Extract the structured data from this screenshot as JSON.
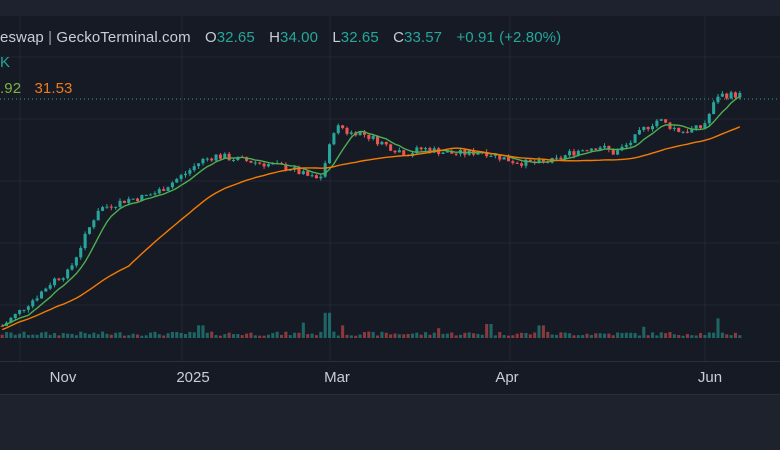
{
  "legend": {
    "source": "eswap",
    "separator": "|",
    "provider": "GeckoTerminal.com",
    "open_key": "O",
    "open": "32.65",
    "high_key": "H",
    "high": "34.00",
    "low_key": "L",
    "low": "32.65",
    "close_key": "C",
    "close": "33.57",
    "change": "+0.91 (+2.80%)",
    "volume_fragment": "K",
    "ma_fast": ".92",
    "ma_slow": "31.53"
  },
  "colors": {
    "up": "#26a69a",
    "down": "#ef5350",
    "ma_fast": "#4caf50",
    "ma_slow": "#f57c00",
    "background": "#161a25"
  },
  "chart_data": {
    "type": "candlestick",
    "x_tick_labels": [
      "Nov",
      "2025",
      "Mar",
      "Apr",
      "Jun"
    ],
    "last_close": 33.57,
    "ohlc_shape_y": [
      31,
      28,
      30,
      27,
      29,
      26,
      28,
      24,
      26,
      23,
      25,
      22,
      24,
      21,
      23,
      20,
      22,
      18,
      20,
      17,
      19,
      16,
      18,
      15,
      17,
      14,
      16,
      13,
      15,
      12,
      14,
      11,
      13,
      10,
      12,
      9,
      11,
      8,
      10,
      7,
      9,
      6,
      8,
      5,
      7,
      5,
      6,
      4,
      5,
      3,
      4,
      3,
      3,
      2,
      2,
      1,
      1,
      0,
      -1
    ],
    "price_path": [
      [
        0.0,
        0.05
      ],
      [
        0.02,
        0.1
      ],
      [
        0.05,
        0.18
      ],
      [
        0.07,
        0.24
      ],
      [
        0.09,
        0.27
      ],
      [
        0.11,
        0.4
      ],
      [
        0.13,
        0.53
      ],
      [
        0.15,
        0.55
      ],
      [
        0.17,
        0.57
      ],
      [
        0.19,
        0.58
      ],
      [
        0.21,
        0.6
      ],
      [
        0.23,
        0.64
      ],
      [
        0.25,
        0.68
      ],
      [
        0.27,
        0.73
      ],
      [
        0.29,
        0.75
      ],
      [
        0.31,
        0.74
      ],
      [
        0.33,
        0.73
      ],
      [
        0.35,
        0.72
      ],
      [
        0.37,
        0.71
      ],
      [
        0.39,
        0.7
      ],
      [
        0.41,
        0.67
      ],
      [
        0.43,
        0.65
      ],
      [
        0.44,
        0.74
      ],
      [
        0.45,
        0.86
      ],
      [
        0.46,
        0.87
      ],
      [
        0.47,
        0.84
      ],
      [
        0.48,
        0.85
      ],
      [
        0.49,
        0.84
      ],
      [
        0.51,
        0.81
      ],
      [
        0.53,
        0.78
      ],
      [
        0.55,
        0.76
      ],
      [
        0.57,
        0.78
      ],
      [
        0.59,
        0.77
      ],
      [
        0.61,
        0.76
      ],
      [
        0.63,
        0.76
      ],
      [
        0.65,
        0.77
      ],
      [
        0.67,
        0.75
      ],
      [
        0.69,
        0.73
      ],
      [
        0.71,
        0.72
      ],
      [
        0.73,
        0.72
      ],
      [
        0.75,
        0.73
      ],
      [
        0.77,
        0.76
      ],
      [
        0.79,
        0.78
      ],
      [
        0.81,
        0.79
      ],
      [
        0.83,
        0.76
      ],
      [
        0.85,
        0.8
      ],
      [
        0.87,
        0.86
      ],
      [
        0.89,
        0.9
      ],
      [
        0.9,
        0.88
      ],
      [
        0.92,
        0.85
      ],
      [
        0.94,
        0.86
      ],
      [
        0.95,
        0.87
      ],
      [
        0.96,
        0.93
      ],
      [
        0.97,
        1.0
      ]
    ],
    "volume_spikes": [
      [
        0.27,
        0.45
      ],
      [
        0.41,
        0.55
      ],
      [
        0.44,
        0.9
      ],
      [
        0.46,
        0.45
      ],
      [
        0.59,
        0.35
      ],
      [
        0.66,
        0.5
      ],
      [
        0.73,
        0.45
      ],
      [
        0.87,
        0.4
      ],
      [
        0.97,
        0.7
      ]
    ]
  }
}
